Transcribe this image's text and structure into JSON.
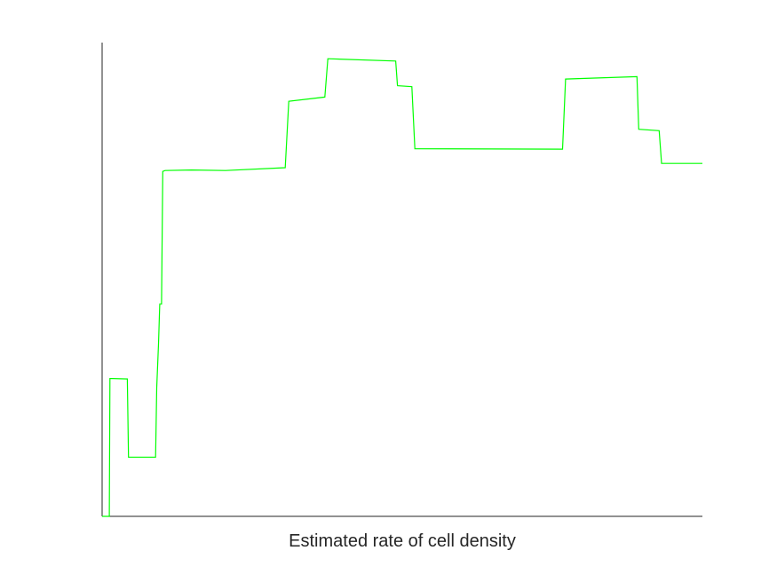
{
  "chart_data": {
    "type": "line",
    "title": "",
    "xlabel": "Estimated rate of cell density",
    "ylabel": "",
    "xlim": [
      0,
      100
    ],
    "ylim": [
      0,
      100
    ],
    "grid": false,
    "legend": "none",
    "series": [
      {
        "color": "#00ff00",
        "x": [
          0,
          1.2,
          1.3,
          1.8,
          4.2,
          4.4,
          8.9,
          9.1,
          9.4,
          9.6,
          9.9,
          10.1,
          10.5,
          14.9,
          20.5,
          30.5,
          31.1,
          37.1,
          37.6,
          48.9,
          49.2,
          51.6,
          52.1,
          76.7,
          77.2,
          89.1,
          89.4,
          92.8,
          93.2,
          100
        ],
        "y": [
          0,
          0,
          29.1,
          29.1,
          29,
          12.5,
          12.5,
          27.2,
          36.4,
          44.8,
          44.8,
          72.8,
          73.0,
          73.1,
          73.0,
          73.6,
          87.6,
          88.5,
          96.6,
          96.1,
          90.9,
          90.7,
          77.6,
          77.5,
          92.3,
          92.8,
          81.7,
          81.4,
          74.5,
          74.5
        ]
      }
    ]
  }
}
